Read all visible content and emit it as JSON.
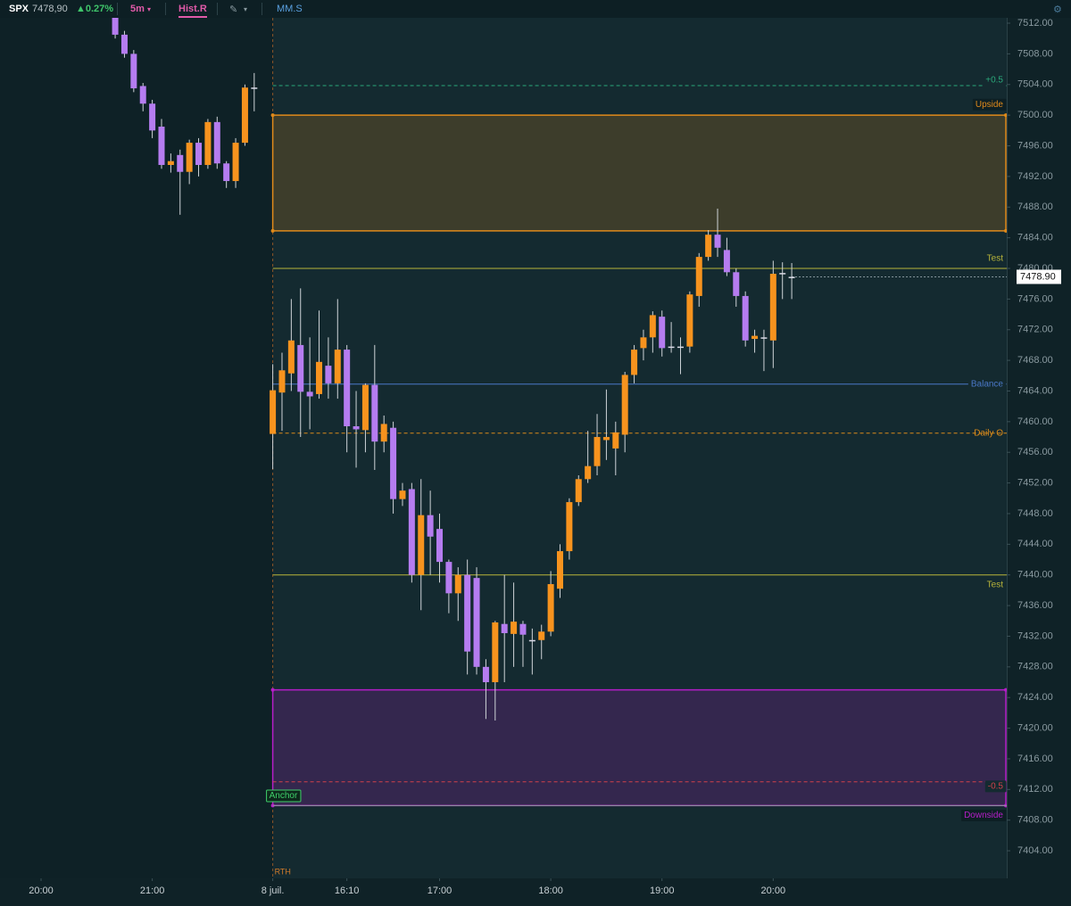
{
  "toolbar": {
    "symbol": "SPX",
    "price": "7478,90",
    "change": "▲0.27%",
    "interval": "5m",
    "indicator_1": "Hist.R",
    "indicator_2": "MM.S"
  },
  "chart_data": {
    "type": "candlestick",
    "x": [
      8,
      9,
      10,
      11,
      12,
      13,
      14,
      15,
      16,
      17,
      18,
      19,
      20,
      21,
      22,
      23,
      25,
      26,
      27,
      28,
      29,
      30,
      31,
      32,
      33,
      34,
      35,
      36,
      37,
      38,
      39,
      40,
      41,
      42,
      43,
      44,
      45,
      46,
      47,
      48,
      49,
      50,
      51,
      52,
      53,
      54,
      55,
      56,
      57,
      58,
      59,
      60,
      61,
      62,
      63,
      64,
      65,
      66,
      67,
      68,
      69,
      70,
      71,
      72,
      73,
      74,
      75,
      76,
      77,
      78,
      79,
      80,
      81
    ],
    "open": [
      7513,
      7510.5,
      7508,
      7503.8,
      7501.5,
      7498.5,
      7493.5,
      7494.8,
      7492.6,
      7496.4,
      7493.5,
      7499.1,
      7493.7,
      7491.4,
      7496.4,
      7503.6,
      7458.4,
      7463.8,
      7466.3,
      7470,
      7463.9,
      7463.6,
      7467.3,
      7465,
      7469.4,
      7459.4,
      7458.9,
      7464.8,
      7457.4,
      7459.2,
      7449.9,
      7451.2,
      7440,
      7447.8,
      7446,
      7441.7,
      7437.6,
      7440,
      7439.6,
      7428,
      7426,
      7433.6,
      7432.3,
      7433.6,
      7431.5,
      7431.5,
      7432.6,
      7438.2,
      7443.1,
      7449.5,
      7452.5,
      7454.2,
      7457.6,
      7456.5,
      7458.3,
      7466.1,
      7469.6,
      7471,
      7473.7,
      7469.8,
      7469.8,
      7469.8,
      7476.4,
      7481.5,
      7484.4,
      7482.4,
      7479.5,
      7476.4,
      7470.8,
      7471,
      7470.6,
      7479.4,
      7478.9
    ],
    "high": [
      7514,
      7511,
      7508.5,
      7504.2,
      7502,
      7499.5,
      7495,
      7495.5,
      7496.8,
      7497,
      7499.5,
      7499.8,
      7494,
      7497,
      7504,
      7505.5,
      7467.5,
      7469,
      7476,
      7477.4,
      7471,
      7474.5,
      7471,
      7476,
      7470,
      7464,
      7465,
      7470,
      7460.8,
      7460,
      7452,
      7452,
      7452.5,
      7451,
      7448,
      7442,
      7441,
      7442,
      7441,
      7429,
      7434,
      7440,
      7439,
      7434,
      7433,
      7433.5,
      7440.5,
      7444,
      7450,
      7453,
      7458.8,
      7461,
      7464.2,
      7460,
      7466.5,
      7470,
      7472,
      7474.4,
      7474.5,
      7473,
      7471,
      7477,
      7482,
      7485,
      7487.8,
      7484,
      7480,
      7477,
      7472,
      7472,
      7481,
      7480.8,
      7480.7
    ],
    "low": [
      7510,
      7507.5,
      7503,
      7500.5,
      7497,
      7493,
      7492.5,
      7487,
      7491,
      7492,
      7493,
      7493,
      7490.5,
      7490.5,
      7496,
      7500.5,
      7453.8,
      7458.8,
      7464,
      7458,
      7459,
      7463,
      7463,
      7463,
      7456,
      7454,
      7456,
      7453.7,
      7456,
      7448,
      7449,
      7439,
      7435.4,
      7440,
      7439,
      7435,
      7434,
      7427,
      7427,
      7421.2,
      7421,
      7426,
      7428,
      7428,
      7427,
      7429,
      7432,
      7437,
      7442,
      7449,
      7452,
      7453,
      7455,
      7453,
      7456,
      7465,
      7468,
      7469,
      7468.5,
      7469,
      7466.2,
      7469,
      7475,
      7481,
      7481.5,
      7479,
      7475,
      7469.8,
      7469,
      7466.6,
      7467,
      7476,
      7476
    ],
    "close": [
      7510.5,
      7508,
      7503.5,
      7501.5,
      7498,
      7493.5,
      7494,
      7492.6,
      7496.4,
      7493.5,
      7499.1,
      7493.7,
      7491.4,
      7496.4,
      7503.6,
      7503.6,
      7464.1,
      7466.7,
      7470.6,
      7463.9,
      7463.3,
      7467.8,
      7465,
      7469.4,
      7459.4,
      7459,
      7464.8,
      7457.4,
      7459.7,
      7449.9,
      7451,
      7440,
      7447.8,
      7445,
      7441.7,
      7437.6,
      7440,
      7430,
      7428,
      7426,
      7433.8,
      7432.4,
      7433.9,
      7432.2,
      7431.5,
      7432.6,
      7438.8,
      7443.1,
      7449.5,
      7452.5,
      7454.2,
      7458,
      7458,
      7458.6,
      7466.1,
      7469.4,
      7471,
      7473.9,
      7469.6,
      7469.8,
      7469.8,
      7476.6,
      7481.5,
      7484.4,
      7482.7,
      7479.5,
      7476.4,
      7470.6,
      7471.2,
      7471,
      7479.3,
      7479.4,
      7478.9
    ],
    "up_color": "#f7931e",
    "down_color": "#b57cf0",
    "doji_color": "#d9d9e6",
    "xlim": [
      -4.43,
      104.2
    ],
    "ylim": [
      7400.4,
      7512.7
    ],
    "xticks": [
      {
        "value": 0,
        "label": "20:00"
      },
      {
        "value": 12,
        "label": "21:00"
      },
      {
        "value": 25,
        "label": "8 juil."
      },
      {
        "value": 33,
        "label": "16:10"
      },
      {
        "value": 43,
        "label": "17:00"
      },
      {
        "value": 55,
        "label": "18:00"
      },
      {
        "value": 67,
        "label": "19:00"
      },
      {
        "value": 79,
        "label": "20:00"
      }
    ],
    "yticks": [
      {
        "value": 7404,
        "label": "7404.00"
      },
      {
        "value": 7408,
        "label": "7408.00"
      },
      {
        "value": 7412,
        "label": "7412.00"
      },
      {
        "value": 7416,
        "label": "7416.00"
      },
      {
        "value": 7420,
        "label": "7420.00"
      },
      {
        "value": 7424,
        "label": "7424.00"
      },
      {
        "value": 7428,
        "label": "7428.00"
      },
      {
        "value": 7432,
        "label": "7432.00"
      },
      {
        "value": 7436,
        "label": "7436.00"
      },
      {
        "value": 7440,
        "label": "7440.00"
      },
      {
        "value": 7444,
        "label": "7444.00"
      },
      {
        "value": 7448,
        "label": "7448.00"
      },
      {
        "value": 7452,
        "label": "7452.00"
      },
      {
        "value": 7456,
        "label": "7456.00"
      },
      {
        "value": 7460,
        "label": "7460.00"
      },
      {
        "value": 7464,
        "label": "7464.00"
      },
      {
        "value": 7468,
        "label": "7468.00"
      },
      {
        "value": 7472,
        "label": "7472.00"
      },
      {
        "value": 7476,
        "label": "7476.00"
      },
      {
        "value": 7480,
        "label": "7480.00"
      },
      {
        "value": 7484,
        "label": "7484.00"
      },
      {
        "value": 7488,
        "label": "7488.00"
      },
      {
        "value": 7492,
        "label": "7492.00"
      },
      {
        "value": 7496,
        "label": "7496.00"
      },
      {
        "value": 7500,
        "label": "7500.00"
      },
      {
        "value": 7504,
        "label": "7504.00"
      },
      {
        "value": 7508,
        "label": "7508.00"
      },
      {
        "value": 7512,
        "label": "7512.00"
      }
    ],
    "session_start": {
      "value": 25,
      "label": "RTH"
    },
    "last_price": {
      "value": 7478.9,
      "label": "7478.90"
    },
    "zones": [
      {
        "name": "Upside",
        "from": 7484.9,
        "to": 7500,
        "color": "#e08a1a"
      },
      {
        "name": "Downside",
        "from": 7409.9,
        "to": 7425,
        "color": "#b51ec8"
      }
    ],
    "levels": [
      {
        "name": "+0.5",
        "value": 7503.85,
        "color": "#2aa87a",
        "dashed": true
      },
      {
        "name": "Test",
        "value": 7480,
        "color": "#b8b43a",
        "dashed": false
      },
      {
        "name": "Balance",
        "value": 7464.9,
        "color": "#4a78c8",
        "dashed": false
      },
      {
        "name": "Daily O",
        "value": 7458.5,
        "color": "#d98a1a",
        "dashed": true
      },
      {
        "name": "Test",
        "value": 7440,
        "color": "#b8b43a",
        "dashed": false
      },
      {
        "name": "-0.5",
        "value": 7413,
        "color": "#d0404a",
        "dashed": true
      },
      {
        "name": "Anchor",
        "value": 7409.9,
        "color": "#8a9a9a",
        "dashed": false
      }
    ]
  }
}
